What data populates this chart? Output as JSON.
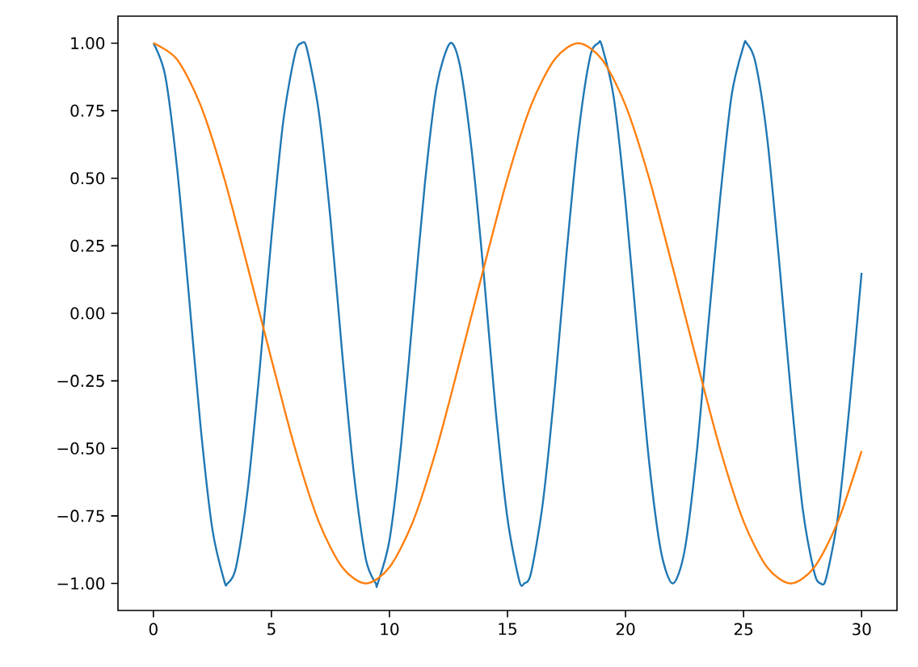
{
  "chart_data": {
    "type": "line",
    "xlim": [
      -1.5,
      31.5
    ],
    "ylim": [
      -1.1,
      1.1
    ],
    "xticks": [
      0,
      5,
      10,
      15,
      20,
      25,
      30
    ],
    "yticks": [
      {
        "value": -1.0,
        "label": "−1.00"
      },
      {
        "value": -0.75,
        "label": "−0.75"
      },
      {
        "value": -0.5,
        "label": "−0.50"
      },
      {
        "value": -0.25,
        "label": "−0.25"
      },
      {
        "value": 0.0,
        "label": "0.00"
      },
      {
        "value": 0.25,
        "label": "0.25"
      },
      {
        "value": 0.5,
        "label": "0.50"
      },
      {
        "value": 0.75,
        "label": "0.75"
      },
      {
        "value": 1.0,
        "label": "1.00"
      }
    ],
    "grid": false,
    "marker": "none",
    "line_style": "solid",
    "series": [
      {
        "color": "#1f77b4",
        "x": [
          0,
          0.5,
          1,
          1.5,
          2,
          2.5,
          3,
          3.14,
          3.5,
          4,
          4.5,
          5,
          5.5,
          6,
          6.28,
          6.5,
          7,
          7.5,
          8,
          8.5,
          9,
          9.42,
          9.5,
          10,
          10.5,
          11,
          11.5,
          12,
          12.57,
          13,
          13.5,
          14,
          14.5,
          15,
          15.5,
          15.71,
          16,
          16.5,
          17,
          17.5,
          18,
          18.5,
          18.85,
          19,
          19.5,
          20,
          20.5,
          21,
          21.5,
          22,
          22.5,
          23,
          23.5,
          24,
          24.5,
          25,
          25.13,
          25.5,
          26,
          26.5,
          27,
          27.5,
          28,
          28.27,
          28.5,
          29,
          29.5,
          30
        ],
        "values": [
          1,
          0.88,
          0.54,
          0.07,
          -0.42,
          -0.8,
          -0.99,
          -1,
          -0.94,
          -0.65,
          -0.21,
          0.28,
          0.71,
          0.96,
          1,
          0.98,
          0.75,
          0.35,
          -0.15,
          -0.6,
          -0.91,
          -1,
          -1,
          -0.84,
          -0.48,
          0,
          0.48,
          0.84,
          1,
          0.91,
          0.59,
          0.14,
          -0.36,
          -0.76,
          -0.99,
          -1,
          -0.96,
          -0.7,
          -0.28,
          0.22,
          0.66,
          0.95,
          1,
          0.99,
          0.8,
          0.41,
          -0.08,
          -0.55,
          -0.88,
          -1,
          -0.88,
          -0.53,
          -0.05,
          0.42,
          0.81,
          0.99,
          1,
          0.93,
          0.65,
          0.2,
          -0.29,
          -0.72,
          -0.96,
          -1,
          -0.98,
          -0.75,
          -0.33,
          0.15
        ]
      },
      {
        "color": "#ff7f0e",
        "x": [
          0,
          1,
          2,
          3,
          4,
          5,
          6,
          7,
          8,
          9,
          10,
          11,
          12,
          13,
          14,
          15,
          16,
          17,
          18,
          19,
          20,
          21,
          22,
          23,
          24,
          25,
          26,
          27,
          28,
          29,
          30
        ],
        "values": [
          1,
          0.94,
          0.77,
          0.5,
          0.17,
          -0.17,
          -0.5,
          -0.77,
          -0.94,
          -1,
          -0.94,
          -0.77,
          -0.5,
          -0.17,
          0.17,
          0.5,
          0.77,
          0.94,
          1,
          0.94,
          0.77,
          0.5,
          0.17,
          -0.17,
          -0.5,
          -0.77,
          -0.94,
          -1,
          -0.94,
          -0.77,
          -0.51
        ]
      }
    ]
  }
}
